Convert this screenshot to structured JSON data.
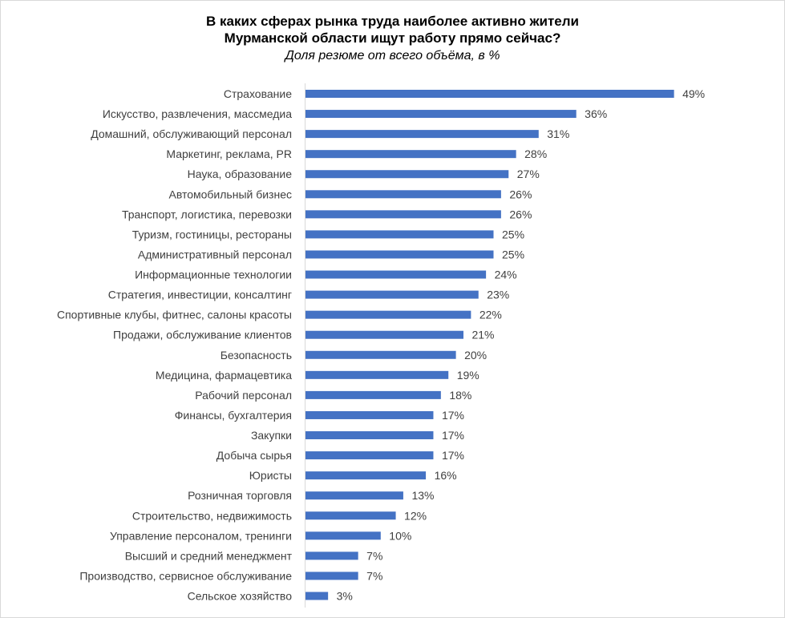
{
  "chart_data": {
    "type": "bar",
    "orientation": "horizontal",
    "title": "В каких сферах рынка труда наиболее активно жители\nМурманской области ищут работу прямо сейчас?",
    "subtitle": "Доля резюме от всего объёма, в %",
    "categories": [
      "Страхование",
      "Искусство, развлечения, массмедиа",
      "Домашний, обслуживающий персонал",
      "Маркетинг, реклама, PR",
      "Наука, образование",
      "Автомобильный бизнес",
      "Транспорт, логистика, перевозки",
      "Туризм, гостиницы, рестораны",
      "Административный персонал",
      "Информационные технологии",
      "Стратегия, инвестиции, консалтинг",
      "Спортивные клубы, фитнес, салоны красоты",
      "Продажи, обслуживание клиентов",
      "Безопасность",
      "Медицина, фармацевтика",
      "Рабочий персонал",
      "Финансы, бухгалтерия",
      "Закупки",
      "Добыча сырья",
      "Юристы",
      "Розничная торговля",
      "Строительство, недвижимость",
      "Управление персоналом, тренинги",
      "Высший и средний менеджмент",
      "Производство, сервисное обслуживание",
      "Сельское хозяйство"
    ],
    "values": [
      49,
      36,
      31,
      28,
      27,
      26,
      26,
      25,
      25,
      24,
      23,
      22,
      21,
      20,
      19,
      18,
      17,
      17,
      17,
      16,
      13,
      12,
      10,
      7,
      7,
      3
    ],
    "value_labels": [
      "49%",
      "36%",
      "31%",
      "28%",
      "27%",
      "26%",
      "26%",
      "25%",
      "25%",
      "24%",
      "23%",
      "22%",
      "21%",
      "20%",
      "19%",
      "18%",
      "17%",
      "17%",
      "17%",
      "16%",
      "13%",
      "12%",
      "10%",
      "7%",
      "7%",
      "3%"
    ],
    "bar_color": "#4472c4",
    "grid": false,
    "legend": "none"
  }
}
